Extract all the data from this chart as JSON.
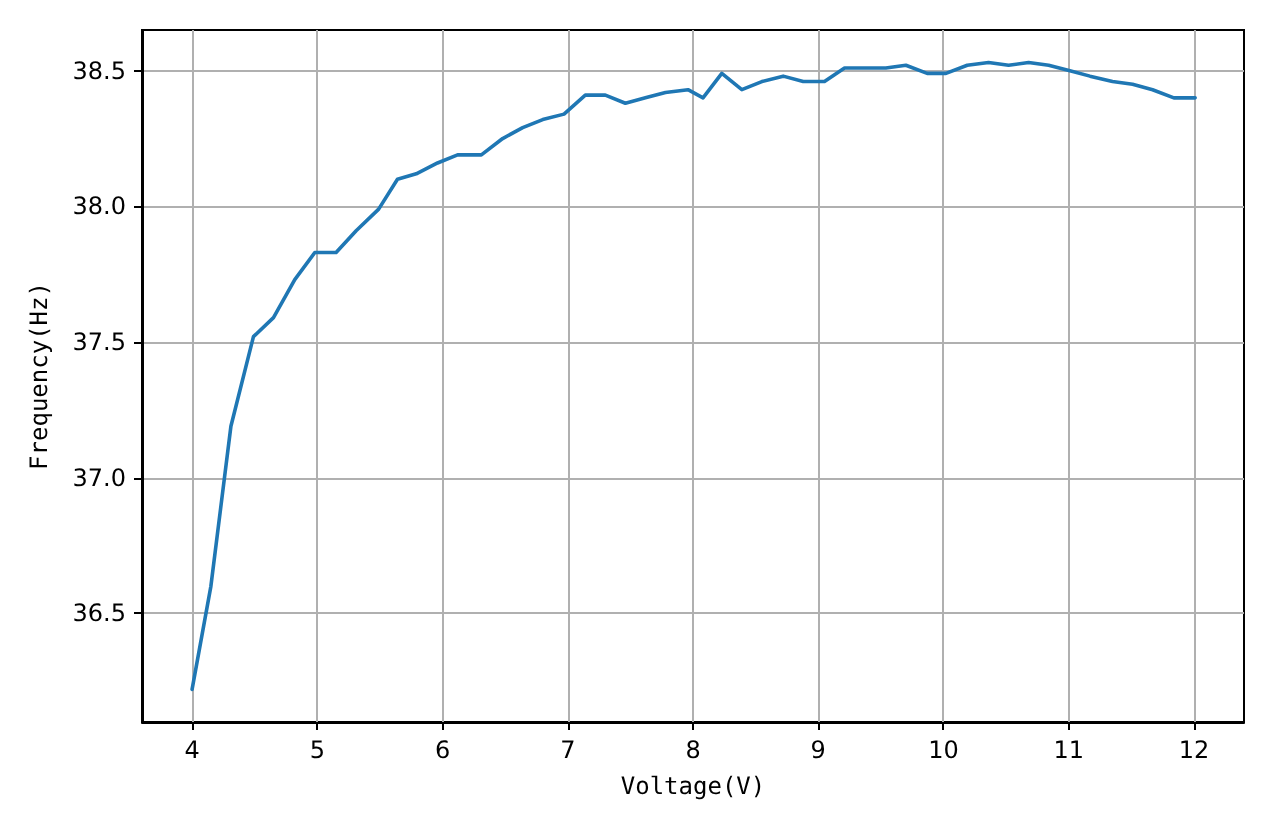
{
  "chart_data": {
    "type": "line",
    "xlabel": "Voltage(V)",
    "ylabel": "Frequency(Hz)",
    "x": [
      4,
      4.15,
      4.31,
      4.49,
      4.65,
      4.82,
      4.98,
      5.15,
      5.31,
      5.49,
      5.64,
      5.79,
      5.96,
      6.12,
      6.31,
      6.48,
      6.64,
      6.8,
      6.97,
      7.14,
      7.3,
      7.46,
      7.62,
      7.78,
      7.96,
      8.08,
      8.23,
      8.39,
      8.55,
      8.72,
      8.88,
      9.05,
      9.21,
      9.38,
      9.54,
      9.7,
      9.87,
      10.02,
      10.19,
      10.36,
      10.52,
      10.68,
      10.84,
      11.01,
      11.17,
      11.35,
      11.51,
      11.67,
      11.84,
      12.01
    ],
    "series": [
      {
        "color": "#1f77b4",
        "values": [
          36.22,
          36.6,
          37.19,
          37.52,
          37.59,
          37.73,
          37.83,
          37.83,
          37.91,
          37.99,
          38.1,
          38.12,
          38.16,
          38.19,
          38.19,
          38.25,
          38.29,
          38.32,
          38.34,
          38.41,
          38.41,
          38.38,
          38.4,
          38.42,
          38.43,
          38.4,
          38.49,
          38.43,
          38.46,
          38.48,
          38.46,
          38.46,
          38.51,
          38.51,
          38.51,
          38.52,
          38.49,
          38.49,
          38.52,
          38.53,
          38.52,
          38.53,
          38.52,
          38.5,
          38.48,
          38.46,
          38.45,
          38.43,
          38.4,
          38.4
        ]
      }
    ],
    "xlim": [
      3.6,
      12.4
    ],
    "xticks": [
      4,
      5,
      6,
      7,
      8,
      9,
      10,
      11,
      12
    ],
    "ylim": [
      36.1,
      38.65
    ],
    "yticks": [
      36.5,
      {
        "value": 37,
        "label": "37.0"
      },
      37.5,
      {
        "value": 38,
        "label": "38.0"
      },
      38.5
    ],
    "grid": true,
    "marker": "none",
    "line_style": "solid",
    "legend": false
  }
}
